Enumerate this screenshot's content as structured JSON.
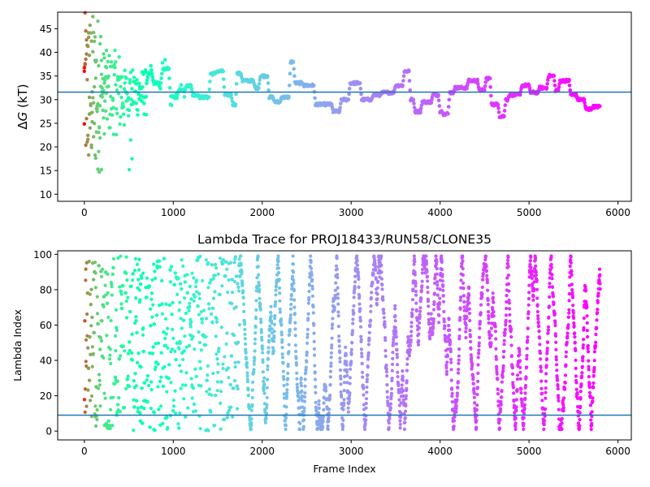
{
  "chart_data": [
    {
      "type": "scatter",
      "title": "",
      "xlabel": "",
      "ylabel": "ΔG (kT)",
      "ylabel_symbol": "Δ",
      "ylabel_var": "G",
      "ylabel_unit": " (kT)",
      "xlim": [
        -300,
        6150
      ],
      "ylim": [
        8.5,
        48.5
      ],
      "xticks": [
        0,
        1000,
        2000,
        3000,
        4000,
        5000,
        6000
      ],
      "yticks": [
        10,
        15,
        20,
        25,
        30,
        35,
        40,
        45
      ],
      "grid": false,
      "hline": 31.6,
      "hline_color": "#1f77b4",
      "colormap": "rainbow",
      "x_max": 5800,
      "step_levels": [
        [
          700,
          33.5
        ],
        [
          760,
          35.5
        ],
        [
          860,
          33.5
        ],
        [
          950,
          36.5
        ],
        [
          1040,
          30.5
        ],
        [
          1130,
          32
        ],
        [
          1200,
          33
        ],
        [
          1280,
          31
        ],
        [
          1400,
          30.5
        ],
        [
          1470,
          35.5
        ],
        [
          1560,
          36
        ],
        [
          1650,
          31
        ],
        [
          1700,
          29
        ],
        [
          1760,
          35.5
        ],
        [
          1900,
          34
        ],
        [
          1960,
          32.5
        ],
        [
          2060,
          35
        ],
        [
          2120,
          30.5
        ],
        [
          2200,
          29.5
        ],
        [
          2300,
          30.5
        ],
        [
          2350,
          38
        ],
        [
          2450,
          33.5
        ],
        [
          2580,
          33
        ],
        [
          2780,
          29
        ],
        [
          2870,
          27.5
        ],
        [
          2970,
          30
        ],
        [
          3100,
          33.5
        ],
        [
          3230,
          30
        ],
        [
          3330,
          31
        ],
        [
          3480,
          31.5
        ],
        [
          3580,
          33
        ],
        [
          3650,
          36
        ],
        [
          3700,
          30
        ],
        [
          3780,
          27.5
        ],
        [
          3900,
          29.5
        ],
        [
          3980,
          31
        ],
        [
          4020,
          27.5
        ],
        [
          4090,
          27
        ],
        [
          4150,
          31.5
        ],
        [
          4300,
          32.5
        ],
        [
          4420,
          34
        ],
        [
          4500,
          32
        ],
        [
          4560,
          34.5
        ],
        [
          4650,
          29
        ],
        [
          4720,
          26.5
        ],
        [
          4760,
          30
        ],
        [
          4900,
          31
        ],
        [
          5000,
          33
        ],
        [
          5100,
          31.5
        ],
        [
          5200,
          32.5
        ],
        [
          5280,
          35
        ],
        [
          5330,
          32
        ],
        [
          5450,
          34
        ],
        [
          5530,
          31
        ],
        [
          5620,
          30
        ],
        [
          5700,
          28
        ],
        [
          5800,
          28.5
        ]
      ]
    },
    {
      "type": "scatter",
      "title": "Lambda Trace for PROJ18433/RUN58/CLONE35",
      "xlabel": "Frame Index",
      "ylabel": "Lambda Index",
      "xlim": [
        -300,
        6150
      ],
      "ylim": [
        -5,
        102
      ],
      "xticks": [
        0,
        1000,
        2000,
        3000,
        4000,
        5000,
        6000
      ],
      "yticks": [
        0,
        20,
        40,
        60,
        80,
        100
      ],
      "grid": false,
      "hline": 9,
      "hline_color": "#1f77b4",
      "colormap": "rainbow",
      "x_max": 5800,
      "lambda_min": 0,
      "lambda_max": 99
    }
  ]
}
